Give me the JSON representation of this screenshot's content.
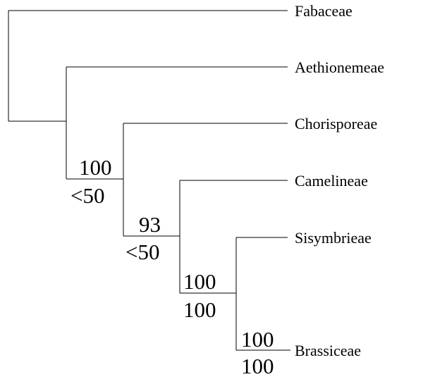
{
  "taxa": [
    "Fabaceae",
    "Aethionemeae",
    "Chorisporeae",
    "Camelineae",
    "Sisymbrieae",
    "Brassiceae"
  ],
  "support_values": [
    {
      "clade": "Aethionemeae+rest",
      "upper": "100",
      "lower": "<50"
    },
    {
      "clade": "Chorisporeae+rest",
      "upper": "93",
      "lower": "<50"
    },
    {
      "clade": "Camelineae+rest",
      "upper": "100",
      "lower": "100"
    },
    {
      "clade": "Sisymbrieae+Brassiceae",
      "upper": "100",
      "lower": "100"
    }
  ],
  "colors": {
    "line": "#000000",
    "text": "#000000",
    "background": "#ffffff"
  }
}
